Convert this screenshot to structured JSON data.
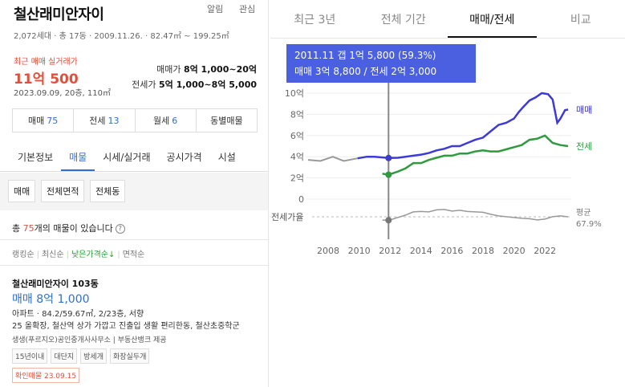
{
  "header": {
    "title": "철산래미안자이",
    "alert_label": "알림",
    "interest_label": "관심",
    "subinfo": "2,072세대 · 총 17동 · 2009.11.26. · 82.47㎡ ~ 199.25㎡"
  },
  "recent": {
    "label": "최근 매매 실거래가",
    "price": "11억 500",
    "meta": "2023.09.09, 20층, 110㎡"
  },
  "ranges": {
    "sale_label": "매매가",
    "sale_value": "8억 1,000~20억",
    "lease_label": "전세가",
    "lease_value": "5억 1,000~8억 5,000"
  },
  "counts": [
    {
      "label": "매매",
      "num": "75"
    },
    {
      "label": "전세",
      "num": "13"
    },
    {
      "label": "월세",
      "num": "6"
    },
    {
      "label": "동별매물",
      "num": ""
    }
  ],
  "tabs": [
    "기본정보",
    "매물",
    "시세/실거래",
    "공시가격",
    "시설"
  ],
  "filters": [
    "매매",
    "전체면적",
    "전체동"
  ],
  "total": {
    "prefix": "총 ",
    "num": "75",
    "suffix": "개의 매물이 있습니다",
    "help": "?"
  },
  "sort": [
    "랭킹순",
    "최신순",
    "낮은가격순↓",
    "면적순"
  ],
  "listing": {
    "name": "철산래미안자이 103동",
    "price": "매매 8억 1,000",
    "spec": "아파트 · 84.2/59.67㎡, 2/23층, 서향",
    "desc": "25 올확장, 철산역 상가 가깝고 진출입 생활 편리한동, 철산초중학군",
    "agency": "생생(푸르지오)공인중개사사무소 | 부동산뱅크 제공",
    "tags": [
      "15년이내",
      "대단지",
      "방세개",
      "화장실두개"
    ],
    "confirm": "확인매물 23.09.15"
  },
  "right_tabs": [
    "최근 3년",
    "전체 기간",
    "매매/전세",
    "비교"
  ],
  "tooltip": {
    "line1": "2011.11  갭 1억 5,800 (59.3%)",
    "line2": "매매 3억 8,800 / 전세 2억 3,000"
  },
  "colors": {
    "accent_blue": "#2f6fd6",
    "sale_line": "#3d3ad6",
    "lease_line": "#2f9a3e",
    "ratio_line": "#999999",
    "price_red": "#e0503c",
    "tooltip_bg": "#4a60e0"
  },
  "chart_data": {
    "type": "line",
    "ylabel": "",
    "y_ticks": [
      "10억",
      "8억",
      "6억",
      "4억",
      "2억",
      "0"
    ],
    "ylim": [
      0,
      10.5
    ],
    "x_ticks": [
      "2008",
      "2010",
      "2012",
      "2014",
      "2016",
      "2018",
      "2020",
      "2022"
    ],
    "xlim": [
      2006.6,
      2023.7
    ],
    "series": [
      {
        "name": "매매",
        "x": [
          2009.9,
          2010.5,
          2011.0,
          2011.9,
          2012.5,
          2013.0,
          2013.5,
          2014.0,
          2014.5,
          2015.0,
          2015.5,
          2016.0,
          2016.5,
          2017.0,
          2017.5,
          2018.0,
          2018.5,
          2019.0,
          2019.5,
          2020.0,
          2020.3,
          2020.6,
          2021.0,
          2021.4,
          2021.8,
          2022.2,
          2022.5,
          2022.8,
          2023.0,
          2023.3,
          2023.5
        ],
        "y": [
          3.85,
          4.0,
          4.0,
          3.88,
          3.9,
          4.0,
          4.1,
          4.2,
          4.35,
          4.6,
          4.75,
          5.0,
          5.0,
          5.3,
          5.6,
          5.8,
          6.4,
          7.0,
          7.2,
          7.6,
          8.2,
          8.7,
          9.3,
          9.6,
          10.0,
          9.9,
          9.4,
          7.2,
          7.6,
          8.4,
          8.45
        ]
      },
      {
        "name": "전세",
        "x": [
          2011.5,
          2011.9,
          2012.5,
          2013.0,
          2013.5,
          2014.0,
          2014.5,
          2015.0,
          2015.5,
          2016.0,
          2016.5,
          2017.0,
          2017.5,
          2018.0,
          2018.5,
          2019.0,
          2019.5,
          2020.0,
          2020.5,
          2021.0,
          2021.5,
          2022.0,
          2022.5,
          2023.0,
          2023.5
        ],
        "y": [
          2.4,
          2.3,
          2.6,
          2.9,
          3.4,
          3.4,
          3.7,
          3.9,
          4.1,
          4.1,
          4.3,
          4.3,
          4.5,
          4.6,
          4.5,
          4.5,
          4.7,
          4.9,
          5.1,
          5.6,
          5.7,
          6.0,
          5.3,
          5.1,
          5.0
        ]
      },
      {
        "name": "전세가율",
        "x": [
          2011.5,
          2012.0,
          2012.5,
          2013.0,
          2013.5,
          2014.0,
          2014.5,
          2015.0,
          2015.5,
          2016.0,
          2016.5,
          2017.0,
          2017.5,
          2018.0,
          2018.5,
          2019.0,
          2019.5,
          2020.0,
          2020.5,
          2021.0,
          2021.5,
          2022.0,
          2022.5,
          2023.0,
          2023.5
        ],
        "y": [
          59.3,
          60.0,
          66.0,
          72.0,
          80.0,
          81.0,
          80.0,
          85.0,
          86.0,
          82.0,
          84.0,
          81.0,
          80.0,
          79.0,
          74.0,
          70.0,
          68.0,
          66.0,
          64.0,
          63.0,
          60.0,
          62.0,
          68.0,
          70.0,
          67.9
        ]
      }
    ],
    "ratio_label": "전세가율",
    "avg_label": "평균",
    "avg_value": "67.9%",
    "legend": [
      "매매",
      "전세"
    ],
    "cursor_x": 2011.9
  }
}
